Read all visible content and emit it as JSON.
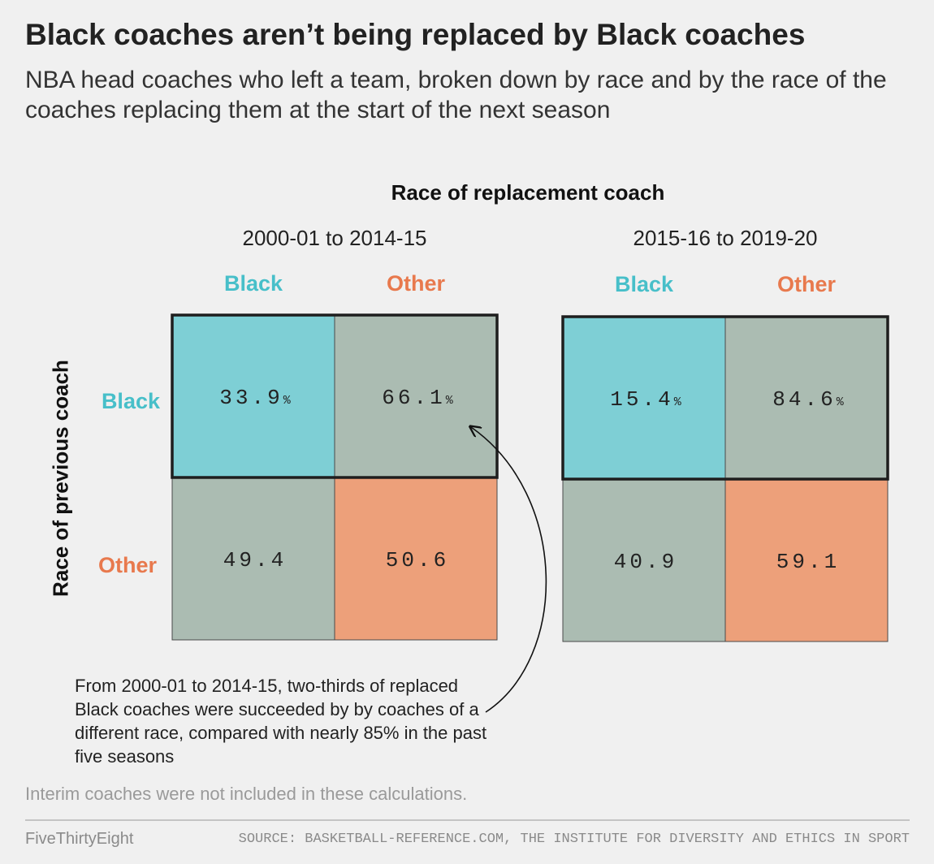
{
  "title": "Black coaches aren’t being replaced by Black coaches",
  "subtitle": "NBA head coaches who left a team, broken down by race and by the race of the coaches replacing them at the start of the next season",
  "col_axis_title": "Race of replacement coach",
  "row_axis_title": "Race of previous coach",
  "annotation": "From 2000-01 to 2014-15, two-thirds of replaced Black coaches were succeeded by by coaches of a different race, compared with nearly 85% in the past five seasons",
  "note": "Interim coaches were not included in these calculations.",
  "footer": {
    "brand": "FiveThirtyEight",
    "source": "SOURCE: BASKETBALL-REFERENCE.COM, THE INSTITUTE FOR DIVERSITY AND ETHICS IN SPORT"
  },
  "colors": {
    "black": "#7ecfd5",
    "other": "#eda07a",
    "mixed": "#abbcb2",
    "black_label": "#47bfc9",
    "other_label": "#e8794d"
  },
  "chart_data": [
    {
      "type": "heatmap",
      "title": "2000-01 to 2014-15",
      "columns": [
        "Black",
        "Other"
      ],
      "rows": [
        "Black",
        "Other"
      ],
      "values": [
        [
          33.9,
          66.1
        ],
        [
          49.4,
          50.6
        ]
      ],
      "labels": [
        [
          "33.9",
          "66.1"
        ],
        [
          "49.4",
          "50.6"
        ]
      ],
      "unit": "%",
      "highlight_row": 0
    },
    {
      "type": "heatmap",
      "title": "2015-16 to 2019-20",
      "columns": [
        "Black",
        "Other"
      ],
      "rows": [
        "Black",
        "Other"
      ],
      "values": [
        [
          15.4,
          84.6
        ],
        [
          40.9,
          59.1
        ]
      ],
      "labels": [
        [
          "15.4",
          "84.6"
        ],
        [
          "40.9",
          "59.1"
        ]
      ],
      "unit": "%",
      "highlight_row": 0
    }
  ]
}
